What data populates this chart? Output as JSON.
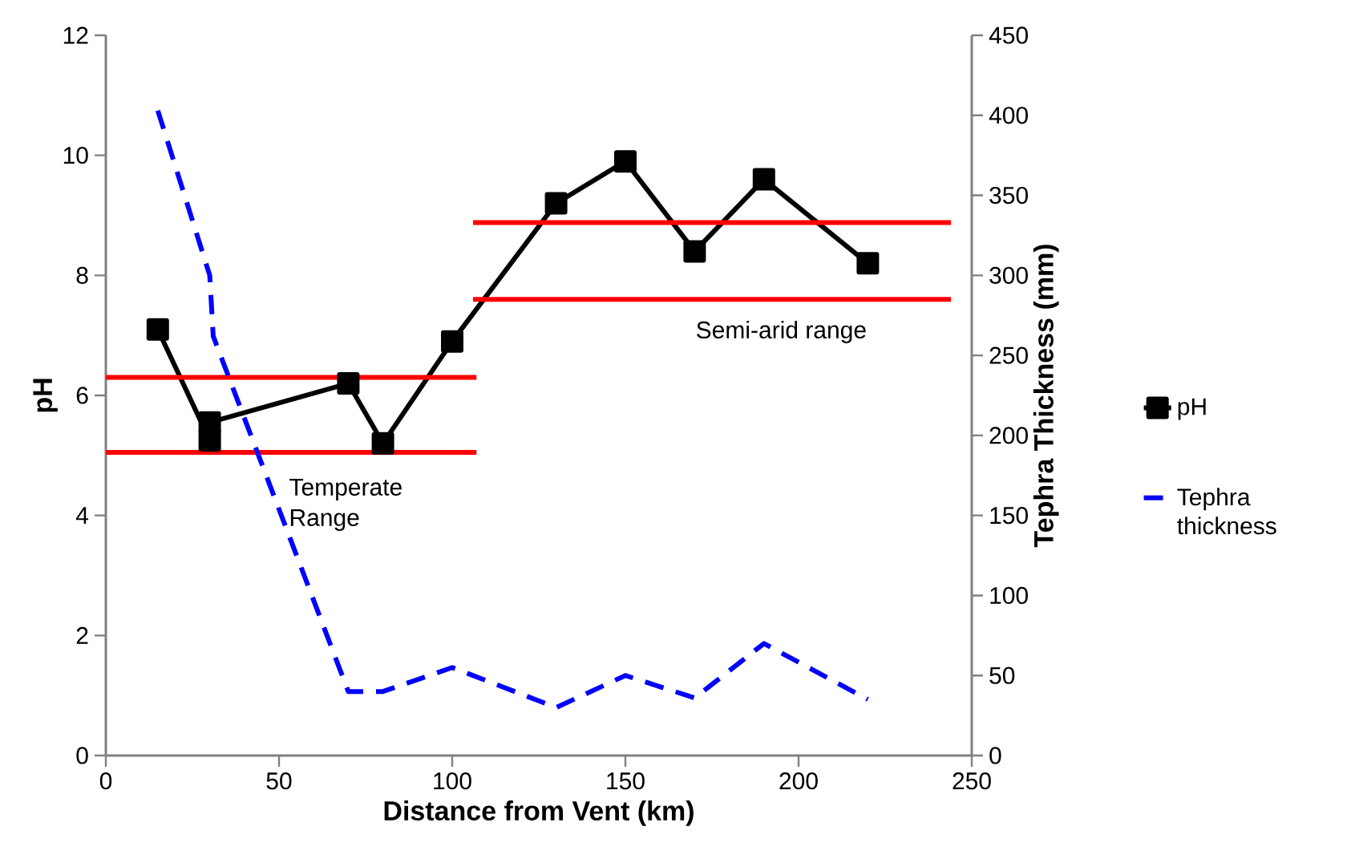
{
  "chart_data": {
    "type": "line",
    "xlabel": "Distance from Vent (km)",
    "ylabel": "pH",
    "y2label": "Tephra Thickness (mm)",
    "xlim": [
      0,
      250
    ],
    "xticks": [
      0,
      50,
      100,
      150,
      200,
      250
    ],
    "ylim": [
      0,
      12
    ],
    "yticks": [
      0,
      2,
      4,
      6,
      8,
      10,
      12
    ],
    "y2lim": [
      0,
      450
    ],
    "y2ticks": [
      0,
      50,
      100,
      150,
      200,
      250,
      300,
      350,
      400,
      450
    ],
    "legend": "right",
    "series": [
      {
        "name": "pH",
        "color": "#000000",
        "marker": "square",
        "line_style": "solid",
        "x": [
          15,
          30,
          30,
          70,
          80,
          100,
          130,
          150,
          170,
          190,
          220
        ],
        "values": [
          7.1,
          5.25,
          5.55,
          6.2,
          5.2,
          6.9,
          9.2,
          9.9,
          8.4,
          9.6,
          8.2
        ]
      },
      {
        "name": "Tephra thickness",
        "color": "#0000ff",
        "marker": "none",
        "line_style": "dashed",
        "axis": "y2",
        "x": [
          15,
          30,
          31,
          70,
          80,
          100,
          130,
          150,
          170,
          190,
          220
        ],
        "values": [
          403,
          300,
          262,
          40,
          40,
          55,
          30,
          50,
          36,
          70,
          35
        ]
      },
      {
        "color": "#ff0000",
        "marker": "none",
        "line_style": "solid",
        "x": [
          0,
          107
        ],
        "values": [
          6.3,
          6.3
        ]
      },
      {
        "color": "#ff0000",
        "marker": "none",
        "line_style": "solid",
        "x": [
          0,
          107
        ],
        "values": [
          5.05,
          5.05
        ]
      },
      {
        "color": "#ff0000",
        "marker": "none",
        "line_style": "solid",
        "x": [
          106,
          244
        ],
        "values": [
          8.88,
          8.88
        ]
      },
      {
        "color": "#ff0000",
        "marker": "none",
        "line_style": "solid",
        "x": [
          106,
          244
        ],
        "values": [
          7.6,
          7.6
        ]
      }
    ],
    "annotations": [
      "Temperate Range",
      "Semi-arid range"
    ]
  }
}
